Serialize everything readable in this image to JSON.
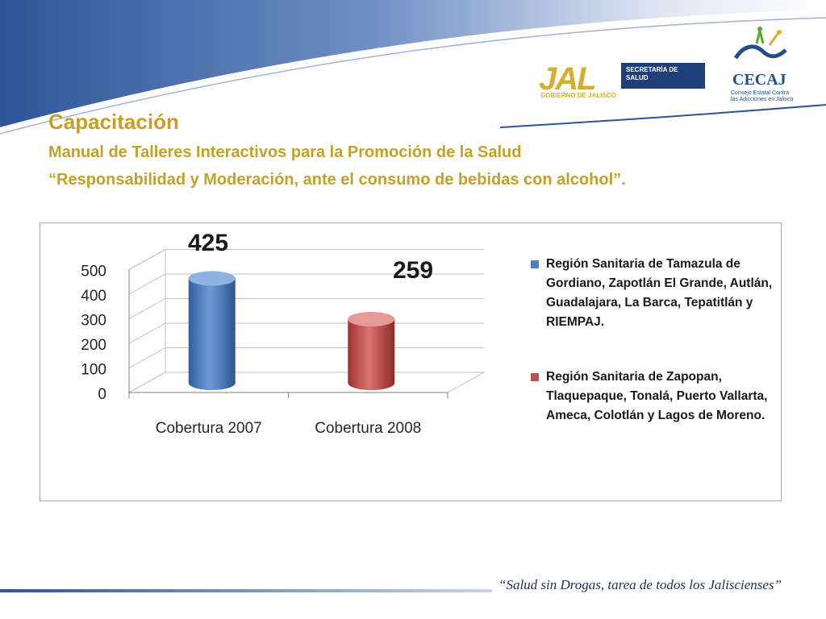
{
  "title": "Capacitación",
  "subtitle_line1": "Manual de Talleres Interactivos para la Promoción de la Salud",
  "subtitle_line2": "“Responsabilidad y Moderación, ante el consumo de bebidas con alcohol”.",
  "logos": {
    "jal_mark": "JAL",
    "jal_gov": "GOBIERNO DE JALISCO",
    "secretaria": "SECRETARÍA DE SALUD",
    "cecaj": "CECAJ",
    "cecaj_sub": "Consejo Estatal Contra las Adicciones en Jalisco"
  },
  "footer": "“Salud sin Drogas, tarea de todos los Jaliscienses”",
  "colors": {
    "title": "#c4a026",
    "series1": "#4f81bd",
    "series2": "#c0504d",
    "header_blue": "#2f5a9e"
  },
  "chart_data": {
    "type": "bar",
    "categories": [
      "Cobertura 2007",
      "Cobertura 2008"
    ],
    "series": [
      {
        "name": "Región Sanitaria de Tamazula de Gordiano, Zapotlán El Grande, Autlán, Guadalajara, La Barca, Tepatitlán y RIEMPAJ.",
        "values": [
          425,
          null
        ],
        "color": "#4f81bd"
      },
      {
        "name": "Región Sanitaria de Zapopan, Tlaquepaque, Tonalá, Puerto Vallarta, Ameca, Colotlán y Lagos de Moreno.",
        "values": [
          null,
          259
        ],
        "color": "#c0504d"
      }
    ],
    "data_labels": [
      "425",
      "259"
    ],
    "yticks": [
      0,
      100,
      200,
      300,
      400,
      500
    ],
    "ylim": [
      0,
      500
    ],
    "title": "",
    "xlabel": "",
    "ylabel": "",
    "legend_position": "right",
    "grid": true
  }
}
